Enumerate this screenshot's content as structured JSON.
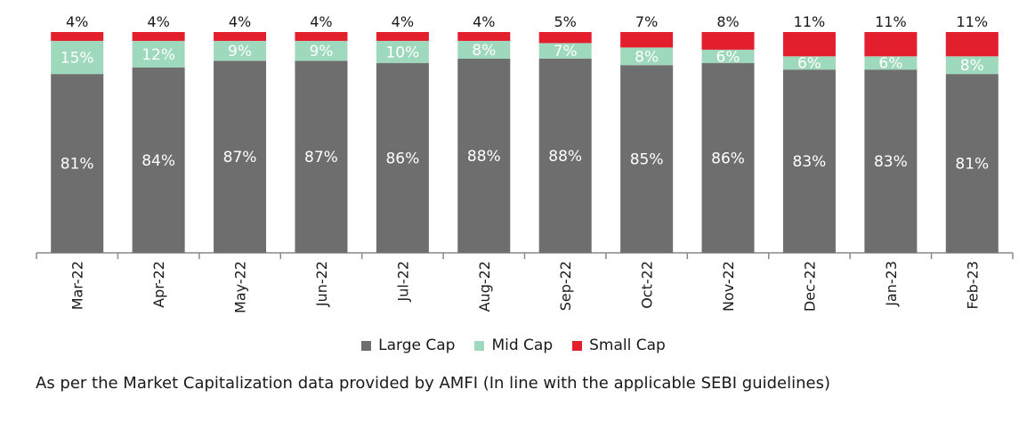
{
  "chart_data": {
    "type": "bar",
    "stacked": true,
    "percent": true,
    "categories": [
      "Mar-22",
      "Apr-22",
      "May-22",
      "Jun-22",
      "Jul-22",
      "Aug-22",
      "Sep-22",
      "Oct-22",
      "Nov-22",
      "Dec-22",
      "Jan-23",
      "Feb-23"
    ],
    "series": [
      {
        "name": "Large Cap",
        "color": "#6e6e6e",
        "values": [
          81,
          84,
          87,
          87,
          86,
          88,
          88,
          85,
          86,
          83,
          83,
          81
        ]
      },
      {
        "name": "Mid Cap",
        "color": "#9fd9bd",
        "values": [
          15,
          12,
          9,
          9,
          10,
          8,
          7,
          8,
          6,
          6,
          6,
          8
        ]
      },
      {
        "name": "Small Cap",
        "color": "#e31e2d",
        "values": [
          4,
          4,
          4,
          4,
          4,
          4,
          5,
          7,
          8,
          11,
          11,
          11
        ]
      }
    ],
    "ylim": [
      0,
      100
    ],
    "legend_position": "bottom",
    "grid": false
  },
  "footnote": "As per the Market Capitalization data provided by AMFI (In line with the applicable SEBI guidelines)"
}
